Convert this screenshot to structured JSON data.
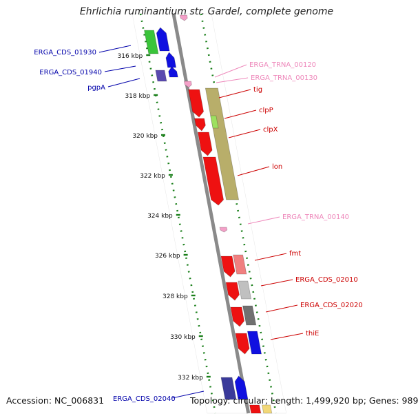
{
  "title": "Ehrlichia ruminantium str. Gardel, complete genome",
  "accession": "Accession: NC_006831",
  "stats": "Topology: circular; Length: 1,499,920 bp; Genes: 989",
  "colors": {
    "backbone": "#8a8a8a",
    "tick": "#1a7f1a",
    "forward_label": "#cc0000",
    "reverse_label": "#0000aa",
    "trna_label": "#ee88bb"
  },
  "ticks": [
    "316 kbp",
    "318 kbp",
    "320 kbp",
    "322 kbp",
    "324 kbp",
    "326 kbp",
    "328 kbp",
    "330 kbp",
    "332 kbp"
  ],
  "labels": [
    {
      "text": "ERGA_CDS_01930",
      "kind": "reverse"
    },
    {
      "text": "ERGA_CDS_01940",
      "kind": "reverse"
    },
    {
      "text": "pgpA",
      "kind": "reverse"
    },
    {
      "text": "ERGA_TRNA_00120",
      "kind": "trna"
    },
    {
      "text": "ERGA_TRNA_00130",
      "kind": "trna"
    },
    {
      "text": "tig",
      "kind": "forward"
    },
    {
      "text": "clpP",
      "kind": "forward"
    },
    {
      "text": "clpX",
      "kind": "forward"
    },
    {
      "text": "lon",
      "kind": "forward"
    },
    {
      "text": "ERGA_TRNA_00140",
      "kind": "trna"
    },
    {
      "text": "fmt",
      "kind": "forward"
    },
    {
      "text": "ERGA_CDS_02010",
      "kind": "forward"
    },
    {
      "text": "ERGA_CDS_02020",
      "kind": "forward"
    },
    {
      "text": "thiE",
      "kind": "forward"
    },
    {
      "text": "ERGA_CDS_02040",
      "kind": "reverse"
    }
  ]
}
